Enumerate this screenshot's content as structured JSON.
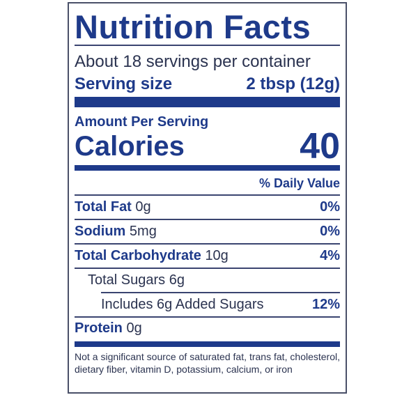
{
  "title": "Nutrition Facts",
  "servings_per_container": "About 18 servings per container",
  "serving_size_label": "Serving size",
  "serving_size_value": "2 tbsp (12g)",
  "amount_per_serving": "Amount Per Serving",
  "calories_label": "Calories",
  "calories_value": "40",
  "daily_value_header": "% Daily Value",
  "nutrients": [
    {
      "name": "Total Fat",
      "amount": "0g",
      "dv": "0%"
    },
    {
      "name": "Sodium",
      "amount": "5mg",
      "dv": "0%"
    },
    {
      "name": "Total Carbohydrate",
      "amount": "10g",
      "dv": "4%"
    },
    {
      "name": "Total Sugars 6g",
      "amount": "",
      "dv": ""
    },
    {
      "name": "Includes 6g Added Sugars",
      "amount": "",
      "dv": "12%"
    },
    {
      "name": "Protein",
      "amount": "0g",
      "dv": ""
    }
  ],
  "footnote": "Not a significant source of saturated fat, trans fat, cholesterol, dietary fiber, vitamin D, potassium, calcium, or iron",
  "colors": {
    "accent": "#1e3a8a",
    "text": "#2b3350"
  }
}
